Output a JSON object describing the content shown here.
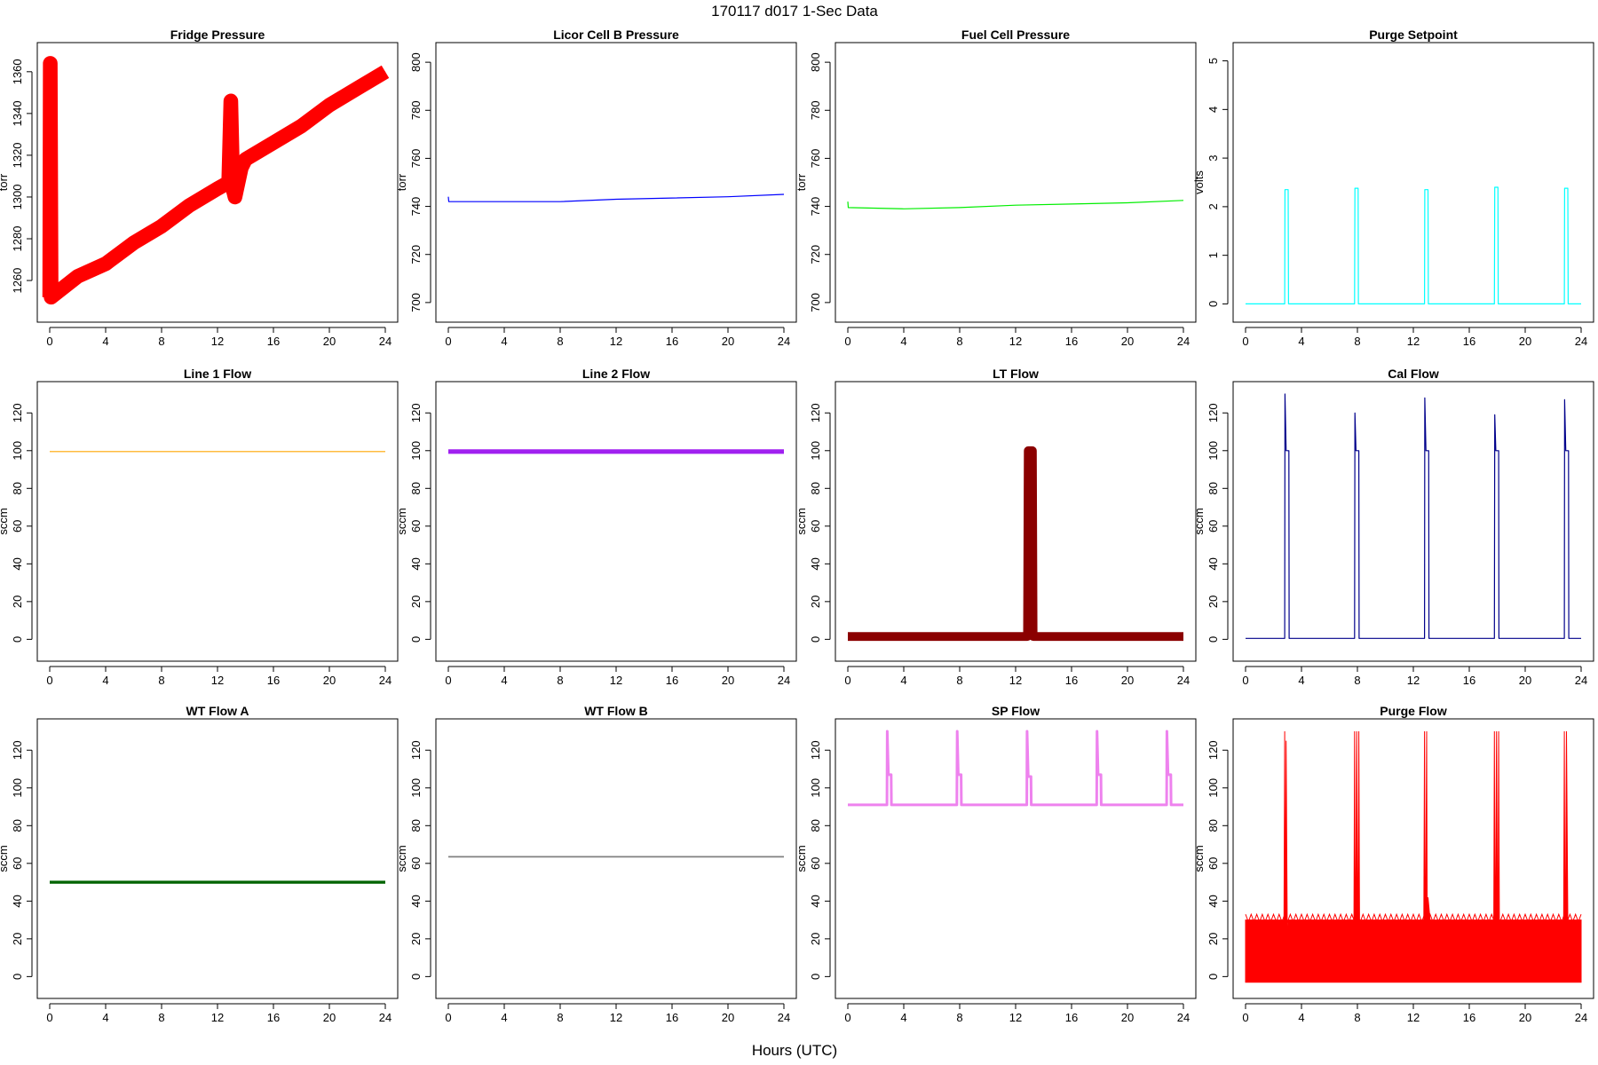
{
  "figure": {
    "title": "170117   d017   1-Sec Data",
    "xlabel": "Hours (UTC)"
  },
  "chart_data": [
    {
      "type": "line",
      "title": "Fridge Pressure",
      "ylabel": "torr",
      "color": "#ff0000",
      "xlim": [
        0,
        24
      ],
      "ylim": [
        1246,
        1368
      ],
      "xticks": [
        0,
        4,
        8,
        12,
        16,
        20,
        24
      ],
      "yticks": [
        1260,
        1280,
        1300,
        1320,
        1340,
        1360
      ],
      "band": 3.5,
      "points": [
        [
          0,
          1252
        ],
        [
          0.04,
          1364
        ],
        [
          0.1,
          1252
        ],
        [
          2,
          1262
        ],
        [
          4,
          1268
        ],
        [
          6,
          1278
        ],
        [
          8,
          1286
        ],
        [
          10,
          1296
        ],
        [
          12,
          1304
        ],
        [
          12.8,
          1307
        ],
        [
          12.95,
          1346
        ],
        [
          13.1,
          1304
        ],
        [
          13.25,
          1300
        ],
        [
          13.7,
          1314
        ],
        [
          14,
          1318
        ],
        [
          16,
          1326
        ],
        [
          18,
          1334
        ],
        [
          20,
          1344
        ],
        [
          22,
          1352
        ],
        [
          24,
          1360
        ]
      ]
    },
    {
      "type": "line",
      "title": "Licor Cell B Pressure",
      "ylabel": "torr",
      "color": "#0000ff",
      "xlim": [
        0,
        24
      ],
      "ylim": [
        697,
        803
      ],
      "xticks": [
        0,
        4,
        8,
        12,
        16,
        20,
        24
      ],
      "yticks": [
        700,
        720,
        740,
        760,
        780,
        800
      ],
      "band": 0,
      "points": [
        [
          0,
          744
        ],
        [
          0.03,
          742
        ],
        [
          4,
          742
        ],
        [
          8,
          742
        ],
        [
          12,
          743
        ],
        [
          16,
          743.5
        ],
        [
          20,
          744
        ],
        [
          24,
          745
        ]
      ]
    },
    {
      "type": "line",
      "title": "Fuel Cell Pressure",
      "ylabel": "torr",
      "color": "#00ee00",
      "xlim": [
        0,
        24
      ],
      "ylim": [
        697,
        803
      ],
      "xticks": [
        0,
        4,
        8,
        12,
        16,
        20,
        24
      ],
      "yticks": [
        700,
        720,
        740,
        760,
        780,
        800
      ],
      "band": 0,
      "points": [
        [
          0,
          742
        ],
        [
          0.03,
          739.5
        ],
        [
          4,
          739
        ],
        [
          8,
          739.5
        ],
        [
          12,
          740.5
        ],
        [
          16,
          741
        ],
        [
          20,
          741.5
        ],
        [
          24,
          742.5
        ]
      ]
    },
    {
      "type": "line",
      "title": "Purge Setpoint",
      "ylabel": "volts",
      "color": "#00ffff",
      "xlim": [
        0,
        24
      ],
      "ylim": [
        -0.12,
        5.12
      ],
      "xticks": [
        0,
        4,
        8,
        12,
        16,
        20,
        24
      ],
      "yticks": [
        0,
        1,
        2,
        3,
        4,
        5
      ],
      "band": 0,
      "points": [
        [
          0,
          0
        ],
        [
          2.8,
          0
        ],
        [
          2.82,
          2.35
        ],
        [
          3.05,
          2.35
        ],
        [
          3.07,
          0
        ],
        [
          7.8,
          0
        ],
        [
          7.82,
          2.38
        ],
        [
          8.05,
          2.38
        ],
        [
          8.07,
          0
        ],
        [
          12.8,
          0
        ],
        [
          12.82,
          2.35
        ],
        [
          13.05,
          2.35
        ],
        [
          13.07,
          0
        ],
        [
          17.8,
          0
        ],
        [
          17.82,
          2.4
        ],
        [
          18.05,
          2.4
        ],
        [
          18.07,
          0
        ],
        [
          22.8,
          0
        ],
        [
          22.82,
          2.38
        ],
        [
          23.05,
          2.38
        ],
        [
          23.07,
          0
        ],
        [
          24,
          0
        ]
      ]
    },
    {
      "type": "line",
      "title": "Line 1 Flow",
      "ylabel": "sccm",
      "color": "#ffa500",
      "xlim": [
        0,
        24
      ],
      "ylim": [
        -5,
        130
      ],
      "xticks": [
        0,
        4,
        8,
        12,
        16,
        20,
        24
      ],
      "yticks": [
        0,
        20,
        40,
        60,
        80,
        100,
        120
      ],
      "band": 0,
      "points": [
        [
          0,
          99.5
        ],
        [
          24,
          99.5
        ]
      ]
    },
    {
      "type": "line",
      "title": "Line 2 Flow",
      "ylabel": "sccm",
      "color": "#a020f0",
      "xlim": [
        0,
        24
      ],
      "ylim": [
        -5,
        130
      ],
      "xticks": [
        0,
        4,
        8,
        12,
        16,
        20,
        24
      ],
      "yticks": [
        0,
        20,
        40,
        60,
        80,
        100,
        120
      ],
      "band": 1.2,
      "points": [
        [
          0,
          99.5
        ],
        [
          24,
          99.5
        ]
      ]
    },
    {
      "type": "line",
      "title": "LT Flow",
      "ylabel": "sccm",
      "color": "#8b0000",
      "xlim": [
        0,
        24
      ],
      "ylim": [
        -5,
        130
      ],
      "xticks": [
        0,
        4,
        8,
        12,
        16,
        20,
        24
      ],
      "yticks": [
        0,
        20,
        40,
        60,
        80,
        100,
        120
      ],
      "band": 2.3,
      "points": [
        [
          0,
          1.5
        ],
        [
          12.85,
          1.5
        ],
        [
          12.9,
          100
        ],
        [
          13.2,
          100
        ],
        [
          13.25,
          1.5
        ],
        [
          24,
          1.5
        ]
      ]
    },
    {
      "type": "line",
      "title": "Cal Flow",
      "ylabel": "sccm",
      "color": "#00008b",
      "xlim": [
        0,
        24
      ],
      "ylim": [
        -5,
        130
      ],
      "xticks": [
        0,
        4,
        8,
        12,
        16,
        20,
        24
      ],
      "yticks": [
        0,
        20,
        40,
        60,
        80,
        100,
        120
      ],
      "band": 0,
      "points": [
        [
          0,
          0.5
        ],
        [
          2.8,
          0.5
        ],
        [
          2.82,
          130
        ],
        [
          2.9,
          100
        ],
        [
          3.1,
          100
        ],
        [
          3.12,
          0.5
        ],
        [
          7.8,
          0.5
        ],
        [
          7.82,
          120
        ],
        [
          7.9,
          100
        ],
        [
          8.1,
          100
        ],
        [
          8.12,
          0.5
        ],
        [
          12.8,
          0.5
        ],
        [
          12.82,
          128
        ],
        [
          12.9,
          100
        ],
        [
          13.1,
          100
        ],
        [
          13.12,
          0.5
        ],
        [
          17.8,
          0.5
        ],
        [
          17.82,
          119
        ],
        [
          17.9,
          100
        ],
        [
          18.1,
          100
        ],
        [
          18.12,
          0.5
        ],
        [
          22.8,
          0.5
        ],
        [
          22.82,
          127
        ],
        [
          22.9,
          100
        ],
        [
          23.1,
          100
        ],
        [
          23.12,
          0.5
        ],
        [
          24,
          0.5
        ]
      ]
    },
    {
      "type": "line",
      "title": "WT Flow A",
      "ylabel": "sccm",
      "color": "#006400",
      "xlim": [
        0,
        24
      ],
      "ylim": [
        -5,
        130
      ],
      "xticks": [
        0,
        4,
        8,
        12,
        16,
        20,
        24
      ],
      "yticks": [
        0,
        20,
        40,
        60,
        80,
        100,
        120
      ],
      "band": 0.8,
      "points": [
        [
          0,
          50
        ],
        [
          24,
          50
        ]
      ]
    },
    {
      "type": "line",
      "title": "WT Flow B",
      "ylabel": "sccm",
      "color": "#808080",
      "xlim": [
        0,
        24
      ],
      "ylim": [
        -5,
        130
      ],
      "xticks": [
        0,
        4,
        8,
        12,
        16,
        20,
        24
      ],
      "yticks": [
        0,
        20,
        40,
        60,
        80,
        100,
        120
      ],
      "band": 0.4,
      "points": [
        [
          0,
          63.5
        ],
        [
          24,
          63.5
        ]
      ]
    },
    {
      "type": "line",
      "title": "SP Flow",
      "ylabel": "sccm",
      "color": "#ee82ee",
      "xlim": [
        0,
        24
      ],
      "ylim": [
        -5,
        130
      ],
      "xticks": [
        0,
        4,
        8,
        12,
        16,
        20,
        24
      ],
      "yticks": [
        0,
        20,
        40,
        60,
        80,
        100,
        120
      ],
      "band": 0.7,
      "points": [
        [
          0,
          91
        ],
        [
          2.8,
          91
        ],
        [
          2.82,
          130
        ],
        [
          2.9,
          107
        ],
        [
          3.1,
          107
        ],
        [
          3.12,
          91
        ],
        [
          7.8,
          91
        ],
        [
          7.82,
          130
        ],
        [
          7.9,
          107
        ],
        [
          8.1,
          107
        ],
        [
          8.12,
          91
        ],
        [
          12.8,
          91
        ],
        [
          12.82,
          130
        ],
        [
          12.9,
          106
        ],
        [
          13.1,
          106
        ],
        [
          13.12,
          91
        ],
        [
          17.8,
          91
        ],
        [
          17.82,
          130
        ],
        [
          17.9,
          107
        ],
        [
          18.1,
          107
        ],
        [
          18.12,
          91
        ],
        [
          22.8,
          91
        ],
        [
          22.82,
          130
        ],
        [
          22.9,
          107
        ],
        [
          23.1,
          107
        ],
        [
          23.12,
          91
        ],
        [
          24,
          91
        ]
      ]
    },
    {
      "type": "area",
      "title": "Purge Flow",
      "ylabel": "sccm",
      "color": "#ff0000",
      "xlim": [
        0,
        24
      ],
      "ylim": [
        -5,
        130
      ],
      "xticks": [
        0,
        4,
        8,
        12,
        16,
        20,
        24
      ],
      "yticks": [
        0,
        20,
        40,
        60,
        80,
        100,
        120
      ],
      "baseline": -3,
      "base_level": 30,
      "points": [
        [
          0,
          30
        ],
        [
          2.75,
          30
        ],
        [
          2.8,
          130
        ],
        [
          2.85,
          -3
        ],
        [
          2.9,
          125
        ],
        [
          3.0,
          -3
        ],
        [
          3.05,
          30
        ],
        [
          7.75,
          30
        ],
        [
          7.8,
          130
        ],
        [
          7.85,
          -3
        ],
        [
          7.95,
          130
        ],
        [
          8.05,
          -3
        ],
        [
          8.1,
          130
        ],
        [
          8.15,
          30
        ],
        [
          12.75,
          30
        ],
        [
          12.8,
          130
        ],
        [
          12.85,
          -3
        ],
        [
          12.95,
          130
        ],
        [
          13.0,
          -3
        ],
        [
          13.05,
          42
        ],
        [
          13.2,
          30
        ],
        [
          17.75,
          30
        ],
        [
          17.8,
          130
        ],
        [
          17.85,
          -3
        ],
        [
          17.95,
          130
        ],
        [
          18.05,
          -3
        ],
        [
          18.1,
          130
        ],
        [
          18.15,
          30
        ],
        [
          22.75,
          30
        ],
        [
          22.8,
          130
        ],
        [
          22.85,
          -3
        ],
        [
          22.95,
          130
        ],
        [
          23.05,
          30
        ],
        [
          24,
          30
        ]
      ]
    }
  ]
}
